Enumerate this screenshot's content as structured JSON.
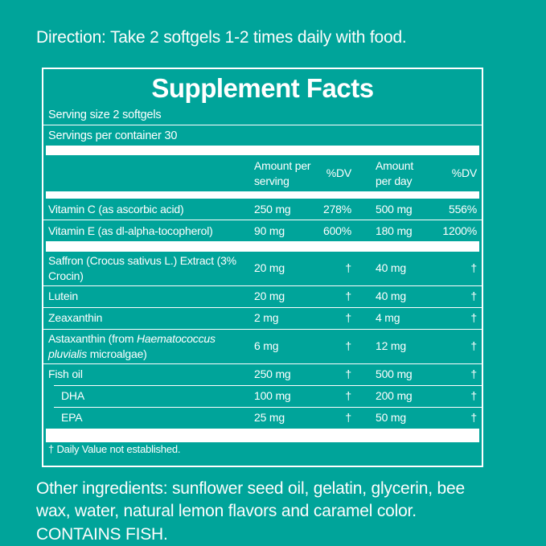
{
  "colors": {
    "background": "#00a49a",
    "panel_border": "#ffffff",
    "text": "#ffffff"
  },
  "direction_text": "Direction: Take 2 softgels 1-2 times daily with food.",
  "supplement_facts": {
    "title": "Supplement Facts",
    "serving_size": "Serving size 2 softgels",
    "servings_per_container": "Servings per container 30",
    "column_headers": {
      "amount_per_serving": "Amount per serving",
      "dv_serving": "%DV",
      "amount_per_day": "Amount per day",
      "dv_day": "%DV"
    },
    "rows": [
      {
        "name": "Vitamin C (as ascorbic acid)",
        "amount_per_serving": "250 mg",
        "dv_serving": "278%",
        "amount_per_day": "500 mg",
        "dv_day": "556%"
      },
      {
        "name": "Vitamin E (as dl-alpha-tocopherol)",
        "amount_per_serving": "90 mg",
        "dv_serving": "600%",
        "amount_per_day": "180 mg",
        "dv_day": "1200%"
      },
      {
        "name": "Saffron (Crocus sativus L.) Extract (3% Crocin)",
        "amount_per_serving": "20 mg",
        "dv_serving": "†",
        "amount_per_day": "40 mg",
        "dv_day": "†"
      },
      {
        "name": "Lutein",
        "amount_per_serving": "20 mg",
        "dv_serving": "†",
        "amount_per_day": "40 mg",
        "dv_day": "†"
      },
      {
        "name": "Zeaxanthin",
        "amount_per_serving": "2 mg",
        "dv_serving": "†",
        "amount_per_day": "4 mg",
        "dv_day": "†"
      },
      {
        "name_pre": "Astaxanthin (from ",
        "name_italic": "Haematococcus pluvialis",
        "name_post": " microalgae)",
        "amount_per_serving": "6 mg",
        "dv_serving": "†",
        "amount_per_day": "12 mg",
        "dv_day": "†"
      },
      {
        "name": "Fish oil",
        "amount_per_serving": "250 mg",
        "dv_serving": "†",
        "amount_per_day": "500 mg",
        "dv_day": "†"
      },
      {
        "name": "DHA",
        "amount_per_serving": "100 mg",
        "dv_serving": "†",
        "amount_per_day": "200 mg",
        "dv_day": "†",
        "indented": true
      },
      {
        "name": "EPA",
        "amount_per_serving": "25 mg",
        "dv_serving": "†",
        "amount_per_day": "50 mg",
        "dv_day": "†",
        "indented": true
      }
    ],
    "footnote": "† Daily Value not established."
  },
  "other_ingredients_text": "Other ingredients: sunflower seed oil, gelatin, glycerin, bee wax, water, natural lemon flavors and caramel color. CONTAINS FISH."
}
